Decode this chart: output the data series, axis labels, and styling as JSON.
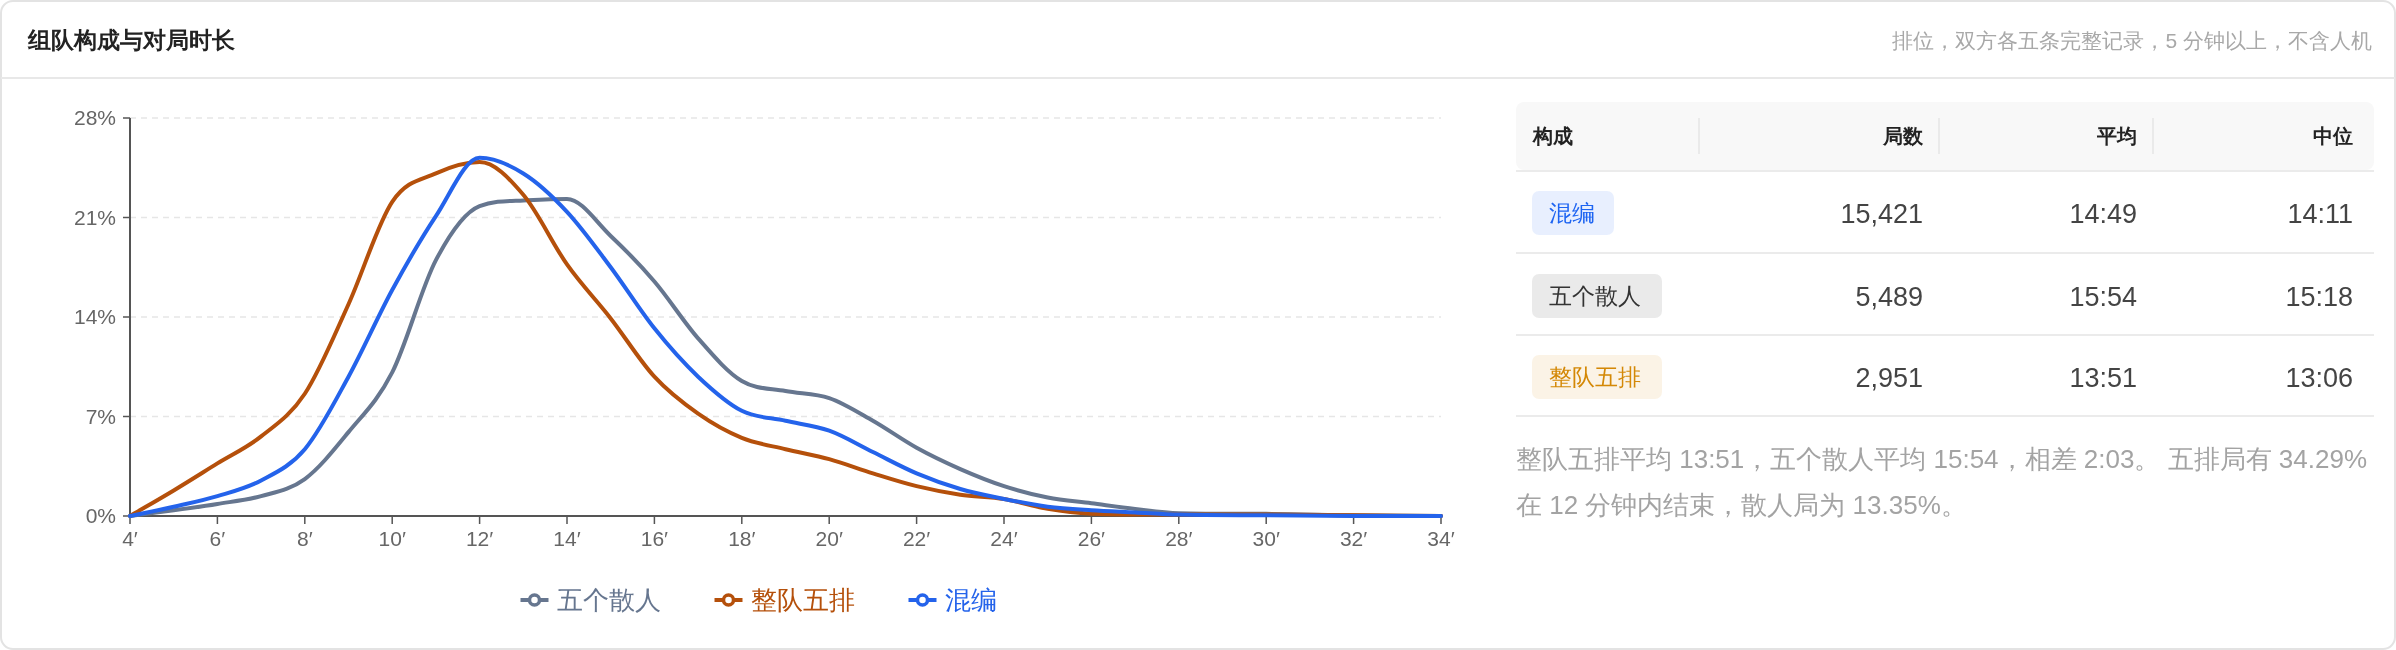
{
  "chart_data": [
    {
      "type": "line",
      "title": "组队构成与对局时长",
      "x": [
        4,
        5,
        6,
        7,
        8,
        9,
        10,
        11,
        12,
        13,
        14,
        15,
        16,
        17,
        18,
        19,
        20,
        21,
        22,
        23,
        24,
        25,
        26,
        27,
        28,
        30,
        32,
        34
      ],
      "xlim": [
        4,
        34
      ],
      "xticks": [
        {
          "value": 4,
          "label": "4′"
        },
        {
          "value": 6,
          "label": "6′"
        },
        {
          "value": 8,
          "label": "8′"
        },
        {
          "value": 10,
          "label": "10′"
        },
        {
          "value": 12,
          "label": "12′"
        },
        {
          "value": 14,
          "label": "14′"
        },
        {
          "value": 16,
          "label": "16′"
        },
        {
          "value": 18,
          "label": "18′"
        },
        {
          "value": 20,
          "label": "20′"
        },
        {
          "value": 22,
          "label": "22′"
        },
        {
          "value": 24,
          "label": "24′"
        },
        {
          "value": 26,
          "label": "26′"
        },
        {
          "value": 28,
          "label": "28′"
        },
        {
          "value": 30,
          "label": "30′"
        },
        {
          "value": 32,
          "label": "32′"
        },
        {
          "value": 34,
          "label": "34′"
        }
      ],
      "ylim": [
        0,
        28
      ],
      "yticks": [
        {
          "value": 0,
          "label": "0%"
        },
        {
          "value": 7,
          "label": "7%"
        },
        {
          "value": 14,
          "label": "14%"
        },
        {
          "value": 21,
          "label": "21%"
        },
        {
          "value": 28,
          "label": "28%"
        }
      ],
      "grid": "y",
      "legend": "bottom",
      "series": [
        {
          "name": "五个散人",
          "color": "#66768f",
          "values": [
            0,
            0.4,
            0.85,
            1.4,
            2.6,
            5.9,
            10.1,
            18.0,
            21.8,
            22.2,
            22.3,
            19.7,
            16.5,
            12.5,
            9.5,
            8.8,
            8.3,
            6.7,
            4.8,
            3.3,
            2.1,
            1.3,
            0.9,
            0.5,
            0.2,
            0.15,
            0.05,
            0
          ]
        },
        {
          "name": "整队五排",
          "color": "#b5500b",
          "values": [
            0,
            1.8,
            3.7,
            5.6,
            8.6,
            14.9,
            22.1,
            24.1,
            24.9,
            22.6,
            17.7,
            13.9,
            9.8,
            7.2,
            5.5,
            4.7,
            4.0,
            3.0,
            2.1,
            1.5,
            1.2,
            0.5,
            0.15,
            0.1,
            0.1,
            0.1,
            0.05,
            0
          ]
        },
        {
          "name": "混编",
          "color": "#2463eb",
          "values": [
            0,
            0.65,
            1.4,
            2.5,
            4.7,
            9.8,
            15.9,
            21.1,
            25.2,
            24.1,
            21.4,
            17.5,
            13.2,
            9.8,
            7.4,
            6.7,
            6.0,
            4.5,
            3.0,
            1.9,
            1.2,
            0.65,
            0.4,
            0.25,
            0.1,
            0.05,
            0,
            0
          ]
        }
      ]
    },
    {
      "type": "other",
      "subtitle": "排位，双方各五条完整记录，5 分钟以上，不含人机",
      "xlabel": "构成",
      "categories": [
        "混编",
        "五个散人",
        "整队五排"
      ],
      "colors": [
        "#1d64f2",
        "#333333",
        "#d48806"
      ],
      "y_categories": [
        "局数",
        "平均",
        "中位"
      ],
      "cell_labels": [
        [
          "15,421",
          "5,489",
          "2,951"
        ],
        [
          "14:49",
          "15:54",
          "13:51"
        ],
        [
          "14:11",
          "15:18",
          "13:06"
        ]
      ],
      "annotations": [
        "整队五排平均 13:51，五个散人平均 15:54，相差 2:03。 五排局有 34.29% 在 12 分钟内结束，散人局为 13.35%。"
      ]
    }
  ]
}
